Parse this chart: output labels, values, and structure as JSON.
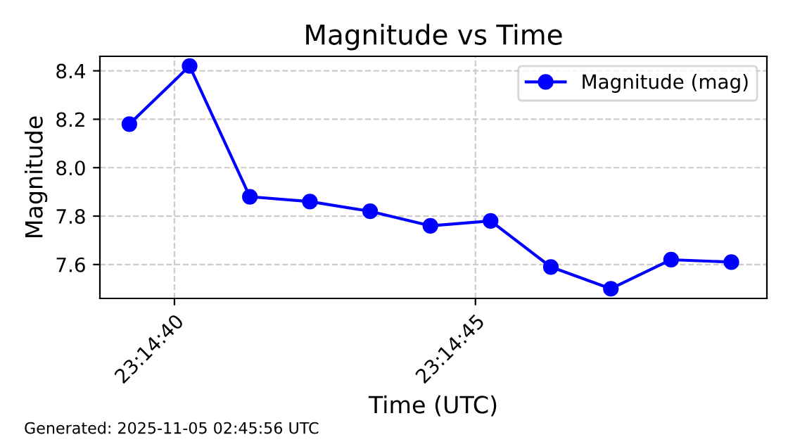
{
  "chart_data": {
    "type": "line",
    "title": "Magnitude vs Time",
    "xlabel": "Time (UTC)",
    "ylabel": "Magnitude",
    "x": [
      23.244236,
      23.244514,
      23.244792,
      23.245069,
      23.245347,
      23.245625,
      23.245903,
      23.246181,
      23.246458,
      23.246736,
      23.247014
    ],
    "series": [
      {
        "name": "Magnitude (mag)",
        "color": "#0000ff",
        "values": [
          8.18,
          8.42,
          7.88,
          7.86,
          7.82,
          7.76,
          7.78,
          7.59,
          7.5,
          7.62,
          7.61
        ]
      }
    ],
    "xlim": [
      23.2441,
      23.247178
    ],
    "xticks": [
      {
        "value": 23.244444,
        "label": "23:14:40"
      },
      {
        "value": 23.245833,
        "label": "23:14:45"
      }
    ],
    "ylim": [
      7.46,
      8.46
    ],
    "yticks": [
      7.6,
      7.8,
      {
        "value": 8,
        "label": "8.0"
      },
      8.2,
      8.4
    ],
    "grid": true,
    "legend": "top right",
    "marker": "circle",
    "line_style": "solid",
    "annotations": [
      "Generated: 2025-11-05 02:45:56 UTC"
    ]
  }
}
